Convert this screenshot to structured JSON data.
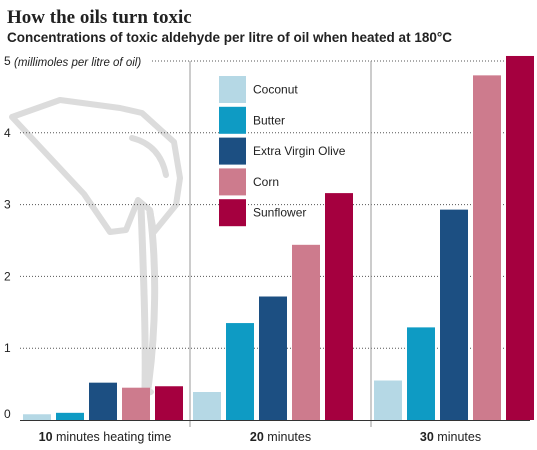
{
  "header": {
    "title": "How the oils turn toxic",
    "subtitle": "Concentrations of toxic aldehyde per litre of oil when heated at 180°C"
  },
  "chart_data": {
    "type": "bar",
    "title": "How the oils turn toxic",
    "subtitle": "Concentrations of toxic aldehyde per litre of oil when heated at 180°C",
    "unit_label": "(millimoles per litre of oil)",
    "ylim": [
      0,
      5
    ],
    "y_ticks": [
      "0",
      "1",
      "2",
      "3",
      "4",
      "5"
    ],
    "categories": [
      {
        "bold": "10",
        "rest": " minutes heating time"
      },
      {
        "bold": "20",
        "rest": " minutes"
      },
      {
        "bold": "30",
        "rest": " minutes"
      }
    ],
    "series": [
      {
        "name": "Coconut",
        "color": "#b5d8e5",
        "values": [
          0.08,
          0.39,
          0.55
        ]
      },
      {
        "name": "Butter",
        "color": "#0e9bc4",
        "values": [
          0.1,
          1.35,
          1.29
        ]
      },
      {
        "name": "Extra Virgin Olive",
        "color": "#1c4f82",
        "values": [
          0.52,
          1.72,
          2.93
        ]
      },
      {
        "name": "Corn",
        "color": "#cd7b8d",
        "values": [
          0.45,
          2.44,
          4.8
        ]
      },
      {
        "name": "Sunflower",
        "color": "#a5003f",
        "values": [
          0.47,
          3.16,
          5.07
        ]
      }
    ],
    "grid": true,
    "legend_position": "top-center"
  },
  "decoration": {
    "illustration_icon": "pouring-oil-jug-icon"
  }
}
